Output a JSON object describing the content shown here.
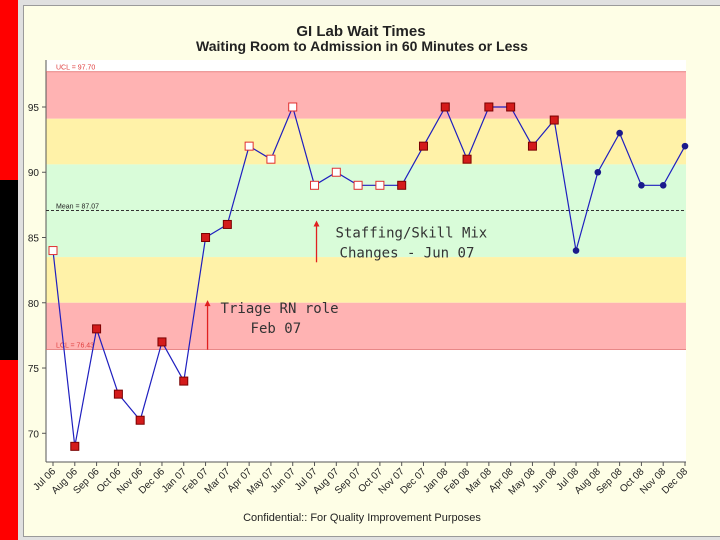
{
  "chart_data": {
    "type": "line",
    "title": "GI Lab Wait Times",
    "subtitle": "Waiting Room to Admission in 60 Minutes or Less",
    "footer": "Confidential:: For Quality Improvement Purposes",
    "categories": [
      "Jul 06",
      "Aug 06",
      "Sep 06",
      "Oct 06",
      "Nov 06",
      "Dec 06",
      "Jan 07",
      "Feb 07",
      "Mar 07",
      "Apr 07",
      "May 07",
      "Jun 07",
      "Jul 07",
      "Aug 07",
      "Sep 07",
      "Oct 07",
      "Nov 07",
      "Dec 07",
      "Jan 08",
      "Feb 08",
      "Mar 08",
      "Apr 08",
      "May 08",
      "Jun 08",
      "Jul 08",
      "Aug 08",
      "Sep 08",
      "Oct 08",
      "Nov 08",
      "Dec 08"
    ],
    "values": [
      84,
      69,
      78,
      73,
      71,
      77,
      74,
      85,
      86,
      92,
      91,
      95,
      89,
      90,
      89,
      89,
      89,
      92,
      95,
      91,
      95,
      95,
      92,
      94,
      84,
      90,
      93,
      89,
      89,
      92
    ],
    "markers": [
      "open",
      "filled",
      "filled",
      "filled",
      "filled",
      "filled",
      "filled",
      "filled",
      "filled",
      "open",
      "open",
      "open",
      "open",
      "open",
      "open",
      "open",
      "filled",
      "filled",
      "filled",
      "filled",
      "filled",
      "filled",
      "filled",
      "filled",
      "dot",
      "dot",
      "dot",
      "dot",
      "dot",
      "dot"
    ],
    "ylim": [
      67.8,
      98.6
    ],
    "yticks": [
      70,
      75,
      80,
      85,
      90,
      95
    ],
    "ucl": 97.7,
    "lcl": 76.43,
    "mean": 87.07,
    "ucl_label": "UCL = 97.70",
    "lcl_label": "LCL = 76.43",
    "mean_label": "Mean = 87.07",
    "bands": [
      {
        "from": 94.1,
        "to": 97.7,
        "color": "#ffb3b3"
      },
      {
        "from": 90.6,
        "to": 94.1,
        "color": "#fff2a8"
      },
      {
        "from": 87.07,
        "to": 90.6,
        "color": "#d9fcd9"
      },
      {
        "from": 83.5,
        "to": 87.07,
        "color": "#d9fcd9"
      },
      {
        "from": 80.0,
        "to": 83.5,
        "color": "#fff2a8"
      },
      {
        "from": 76.43,
        "to": 80.0,
        "color": "#ffb3b3"
      }
    ],
    "annotations": [
      {
        "lines": [
          "Staffing/Skill Mix",
          "Changes - Jun 07"
        ],
        "at_index": 12,
        "arrow_from": 83.1,
        "arrow_to": 86.3
      },
      {
        "lines": [
          "Triage RN role",
          "Feb 07"
        ],
        "at_index": 7,
        "arrow_from": 76.4,
        "arrow_to": 80.2
      }
    ],
    "colors": {
      "line": "#1f1fbf",
      "marker_fill": "#d41b1b",
      "marker_edge": "#7a0000",
      "open_edge": "#e03030",
      "dot": "#1a1a8c",
      "limit_text": "#e04040",
      "arrow": "#e02020"
    }
  }
}
